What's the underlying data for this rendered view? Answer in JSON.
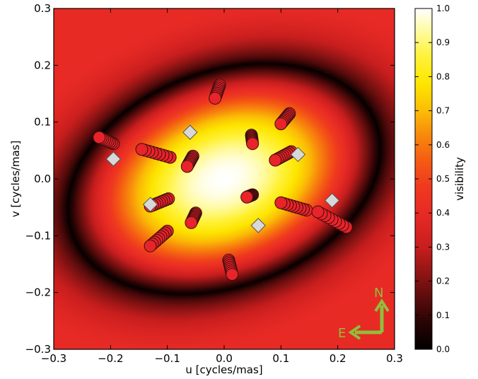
{
  "chart_data": {
    "type": "scatter",
    "title": "",
    "xlabel": "u [cycles/mas]",
    "ylabel": "v [cycles/mas]",
    "xlim": [
      -0.3,
      0.3
    ],
    "ylim": [
      -0.3,
      0.3
    ],
    "x_ticks": [
      -0.3,
      -0.2,
      -0.1,
      0.0,
      0.1,
      0.2,
      0.3
    ],
    "y_ticks": [
      -0.3,
      -0.2,
      -0.1,
      0.0,
      0.1,
      0.2,
      0.3
    ],
    "x_tick_labels": [
      "−0.3",
      "−0.2",
      "−0.1",
      "0.0",
      "0.1",
      "0.2",
      "0.3"
    ],
    "y_tick_labels": [
      "−0.3",
      "−0.2",
      "−0.1",
      "0.0",
      "0.1",
      "0.2",
      "0.3"
    ],
    "grid": false,
    "background": {
      "type": "heatmap",
      "description_label": "visibility",
      "colormap": "hot",
      "model": {
        "kind": "elliptical_gaussian_visibility",
        "major_axis_angle_deg": 20,
        "null_semi_major": 0.285,
        "null_semi_minor": 0.19
      }
    },
    "colorbar": {
      "label": "visibility",
      "range": [
        0.0,
        1.0
      ],
      "ticks": [
        0.0,
        0.1,
        0.2,
        0.3,
        0.4,
        0.5,
        0.6,
        0.7,
        0.8,
        0.9,
        1.0
      ],
      "tick_labels": [
        "0.0",
        "0.1",
        "0.2",
        "0.3",
        "0.4",
        "0.5",
        "0.6",
        "0.7",
        "0.8",
        "0.9",
        "1.0"
      ]
    },
    "series": [
      {
        "marker": "circle",
        "color": "#e8232a",
        "edge_color": "#3a0d0d",
        "tracks": [
          [
            [
              -0.008,
              0.165
            ],
            [
              -0.016,
              0.142
            ]
          ],
          [
            [
              0.115,
              0.115
            ],
            [
              0.1,
              0.097
            ]
          ],
          [
            [
              -0.195,
              0.062
            ],
            [
              -0.22,
              0.073
            ]
          ],
          [
            [
              -0.095,
              0.038
            ],
            [
              -0.145,
              0.052
            ]
          ],
          [
            [
              0.048,
              0.077
            ],
            [
              0.05,
              0.062
            ]
          ],
          [
            [
              -0.055,
              0.04
            ],
            [
              -0.065,
              0.022
            ]
          ],
          [
            [
              0.118,
              0.048
            ],
            [
              0.09,
              0.033
            ]
          ],
          [
            [
              -0.098,
              -0.035
            ],
            [
              -0.13,
              -0.048
            ]
          ],
          [
            [
              0.05,
              -0.028
            ],
            [
              0.04,
              -0.032
            ]
          ],
          [
            [
              0.145,
              -0.055
            ],
            [
              0.1,
              -0.042
            ]
          ],
          [
            [
              0.215,
              -0.085
            ],
            [
              0.165,
              -0.058
            ]
          ],
          [
            [
              -0.05,
              -0.06
            ],
            [
              -0.058,
              -0.077
            ]
          ],
          [
            [
              -0.1,
              -0.092
            ],
            [
              -0.13,
              -0.118
            ]
          ],
          [
            [
              0.008,
              -0.143
            ],
            [
              0.014,
              -0.168
            ]
          ]
        ]
      },
      {
        "marker": "diamond",
        "color": "#d8d8d8",
        "edge_color": "#555555",
        "points": [
          [
            -0.06,
            0.082
          ],
          [
            -0.195,
            0.035
          ],
          [
            0.13,
            0.043
          ],
          [
            -0.13,
            -0.045
          ],
          [
            0.06,
            -0.082
          ],
          [
            0.19,
            -0.038
          ]
        ]
      }
    ],
    "annotations": {
      "compass_north": "N",
      "compass_east": "E",
      "compass_color": "#8fbf3a"
    }
  }
}
